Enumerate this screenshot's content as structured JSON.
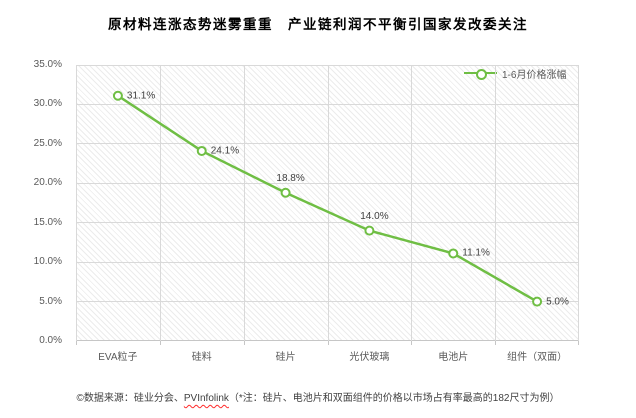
{
  "page": {
    "background": "#FFFFFF"
  },
  "title": "原材料连涨态势迷雾重重　产业链利润不平衡引国家发改委关注",
  "legend": {
    "label": "1-6月价格涨幅"
  },
  "footer": {
    "prefix": "©数据来源：硅业分会、",
    "brand": "PVInfolink",
    "suffix": "（*注：硅片、电池片和双面组件的价格以市场占有率最高的182尺寸为例）"
  },
  "colors": {
    "series": "#6FBE44",
    "marker_fill": "#FFFFFF",
    "gridline": "#D9D9D9",
    "axis_line": "#C6C6C6",
    "axis_text": "#595959",
    "value_text": "#3F3F3F",
    "title_text": "#000000",
    "footer_text": "#404040",
    "spellcheck_underline": "#FF2A2A"
  },
  "chart_data": {
    "type": "line",
    "title": "原材料连涨态势迷雾重重　产业链利润不平衡引国家发改委关注",
    "categories": [
      "EVA粒子",
      "硅料",
      "硅片",
      "光伏玻璃",
      "电池片",
      "组件（双面）"
    ],
    "series": [
      {
        "name": "1-6月价格涨幅",
        "values": [
          31.1,
          24.1,
          18.8,
          14.0,
          11.1,
          5.0
        ],
        "labels": [
          "31.1%",
          "24.1%",
          "18.8%",
          "14.0%",
          "11.1%",
          "5.0%"
        ],
        "label_positions": [
          "right",
          "right",
          "above",
          "above",
          "right",
          "right"
        ]
      }
    ],
    "xlabel": "",
    "ylabel": "",
    "ylim": [
      0,
      35
    ],
    "ytick_step": 5,
    "yticks": [
      "0.0%",
      "5.0%",
      "10.0%",
      "15.0%",
      "20.0%",
      "25.0%",
      "30.0%",
      "35.0%"
    ],
    "grid": true,
    "legend_position": "top-right-inside",
    "plot_background": "diagonal-hatch"
  }
}
